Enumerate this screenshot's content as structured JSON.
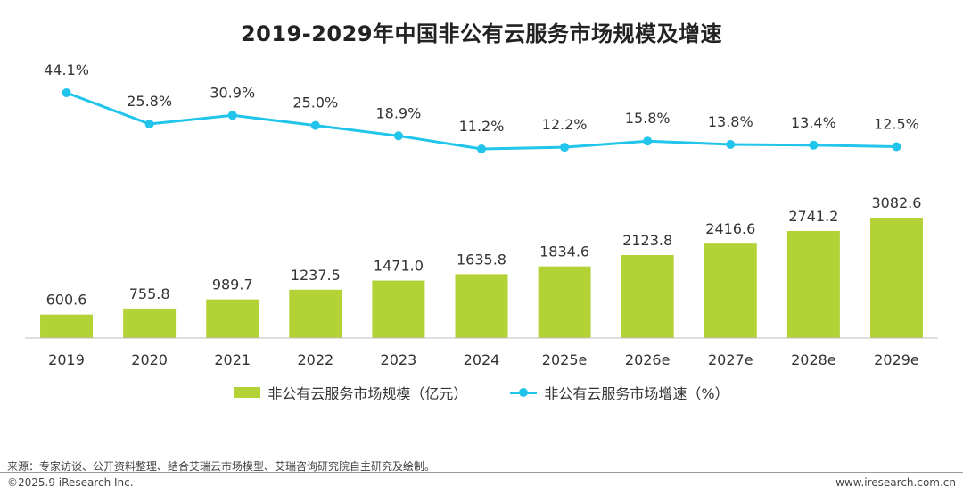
{
  "chart_data": {
    "type": "bar",
    "title": "2019-2029年中国非公有云服务市场规模及增速",
    "categories": [
      "2019",
      "2020",
      "2021",
      "2022",
      "2023",
      "2024",
      "2025e",
      "2026e",
      "2027e",
      "2028e",
      "2029e"
    ],
    "series": [
      {
        "name": "非公有云服务市场规模（亿元）",
        "type": "bar",
        "color": "#b2d235",
        "values": [
          600.6,
          755.8,
          989.7,
          1237.5,
          1471.0,
          1635.8,
          1834.6,
          2123.8,
          2416.6,
          2741.2,
          3082.6
        ],
        "labels": [
          "600.6",
          "755.8",
          "989.7",
          "1237.5",
          "1471.0",
          "1635.8",
          "1834.6",
          "2123.8",
          "2416.6",
          "2741.2",
          "3082.6"
        ]
      },
      {
        "name": "非公有云服务市场增速（%）",
        "type": "line",
        "color": "#21c4ea",
        "values": [
          44.1,
          25.8,
          30.9,
          25.0,
          18.9,
          11.2,
          12.2,
          15.8,
          13.8,
          13.4,
          12.5
        ],
        "labels": [
          "44.1%",
          "25.8%",
          "30.9%",
          "25.0%",
          "18.9%",
          "11.2%",
          "12.2%",
          "15.8%",
          "13.8%",
          "13.4%",
          "12.5%"
        ]
      }
    ],
    "xlabel": "",
    "ylabel": "",
    "grid": false,
    "legend": "bottom"
  },
  "footer": {
    "source": "来源：专家访谈、公开资料整理、结合艾瑞云市场模型、艾瑞咨询研究院自主研究及绘制。",
    "copyright": "©2025.9 iResearch Inc.",
    "website": "www.iresearch.com.cn"
  }
}
